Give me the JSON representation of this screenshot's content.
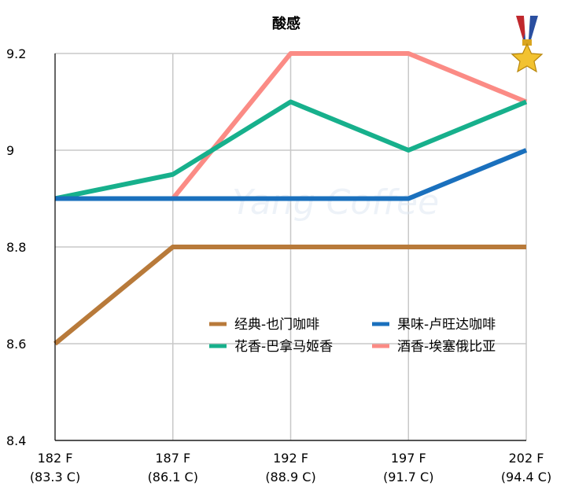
{
  "chart_data": {
    "type": "line",
    "title": "酸感",
    "xlabel": "",
    "ylabel": "",
    "categories": [
      [
        "182 F",
        "(83.3 C)"
      ],
      [
        "187 F",
        "(86.1 C)"
      ],
      [
        "192 F",
        "(88.9 C)"
      ],
      [
        "197 F",
        "(91.7 C)"
      ],
      [
        "202 F",
        "(94.4 C)"
      ]
    ],
    "ylim": [
      8.4,
      9.2
    ],
    "yticks": [
      8.4,
      8.6,
      8.8,
      9,
      9.2
    ],
    "ytick_labels": [
      "8.4",
      "8.6",
      "8.8",
      "9",
      "9.2"
    ],
    "grid": true,
    "legend_placement": "lower-right",
    "series": [
      {
        "name": "经典-也门咖啡",
        "color": "#b87a3a",
        "values": [
          8.6,
          8.8,
          8.8,
          8.8,
          8.8
        ]
      },
      {
        "name": "果味-卢旺达咖啡",
        "color": "#1a70bd",
        "values": [
          8.9,
          8.9,
          8.9,
          8.9,
          9.0
        ]
      },
      {
        "name": "花香-巴拿马姬香",
        "color": "#17b08c",
        "values": [
          8.9,
          8.95,
          9.1,
          9.0,
          9.1
        ]
      },
      {
        "name": "酒香-埃塞俄比亚",
        "color": "#fb8b85",
        "values": [
          null,
          8.9,
          9.2,
          9.2,
          9.1
        ]
      }
    ],
    "draw_order": [
      3,
      2,
      1,
      0
    ],
    "watermark": "Yang Coffee",
    "badge_icon": "medal-icon"
  }
}
